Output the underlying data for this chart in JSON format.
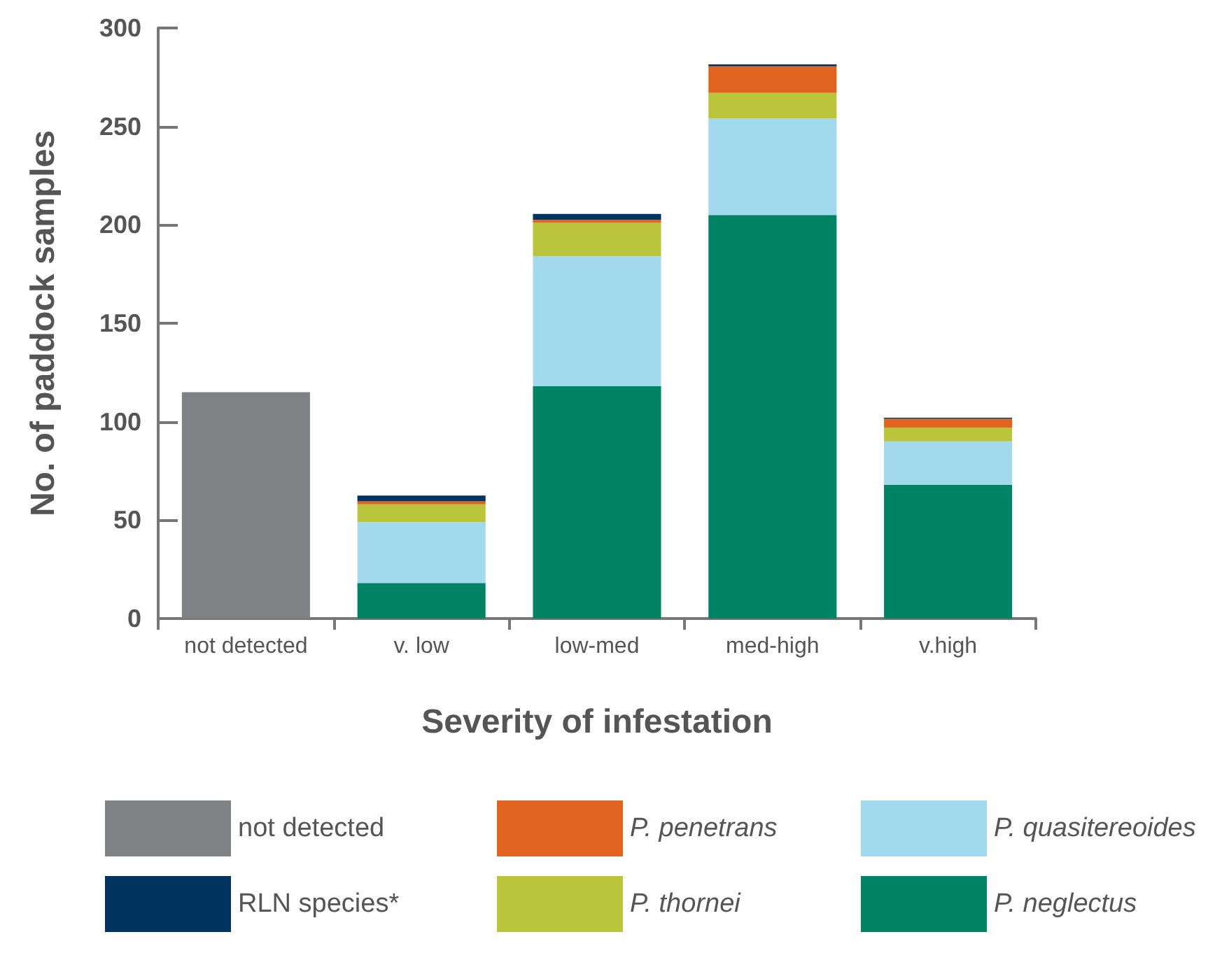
{
  "chart_data": {
    "type": "bar",
    "stacked": true,
    "xlabel": "Severity of infestation",
    "ylabel": "No. of paddock samples",
    "categories": [
      "not detected",
      "v. low",
      "low-med",
      "med-high",
      "v.high"
    ],
    "series": [
      {
        "name": "not detected",
        "color": "#808185",
        "values": [
          115,
          null,
          null,
          null,
          null
        ]
      },
      {
        "name": "P. neglectus",
        "color": "#008264",
        "values": [
          null,
          18,
          118,
          205,
          68
        ]
      },
      {
        "name": "P. quasitereoides",
        "color": "#a3d9ec",
        "values": [
          null,
          31,
          66,
          49,
          22
        ]
      },
      {
        "name": "P. thornei",
        "color": "#bac53c",
        "values": [
          null,
          9,
          17,
          13,
          7
        ]
      },
      {
        "name": "P. penetrans",
        "color": "#e06420",
        "values": [
          null,
          1.5,
          1.5,
          13.5,
          4.5
        ]
      },
      {
        "name": "RLN species*",
        "color": "#00345e",
        "values": [
          null,
          3,
          3,
          1,
          0.5
        ]
      }
    ],
    "ylim": [
      0,
      300
    ],
    "yticks": [
      0,
      50,
      100,
      150,
      200,
      250,
      300
    ],
    "grid": false,
    "legend": "bottom"
  }
}
